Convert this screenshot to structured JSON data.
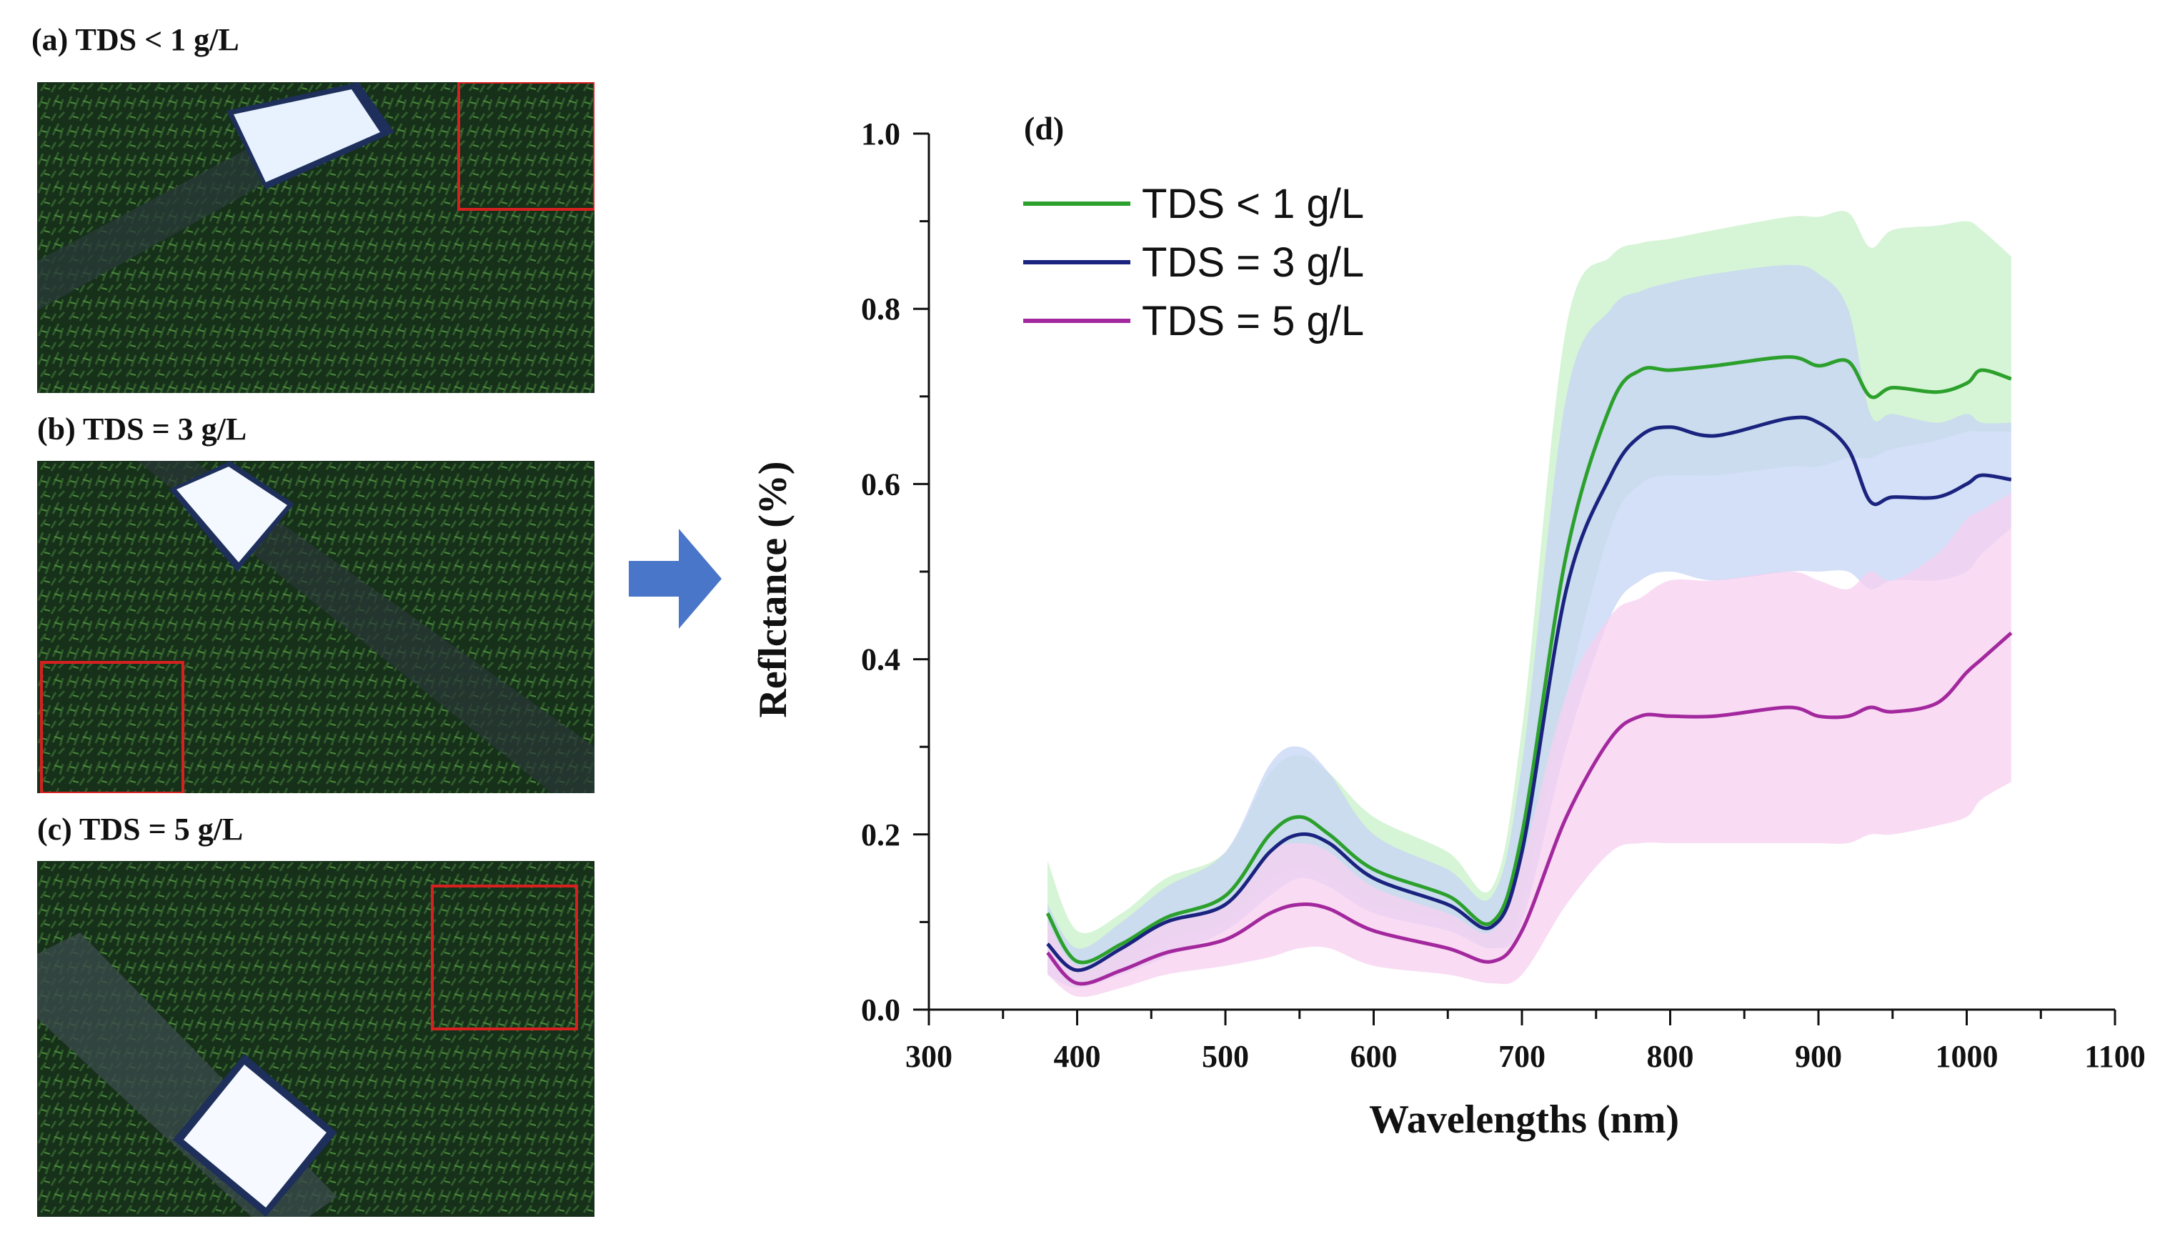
{
  "panels": [
    {
      "label": "(a) TDS < 1 g/L"
    },
    {
      "label": "(b) TDS = 3 g/L"
    },
    {
      "label": "(c) TDS = 5 g/L"
    }
  ],
  "colors": {
    "arrow": "#4a76c9",
    "roi_box": "#d92020",
    "vegetation": "#1c3a1a"
  },
  "chart_data": {
    "type": "line",
    "panel_letter": "(d)",
    "title": "",
    "xlabel": "Wavelengths (nm)",
    "ylabel": "Reflctance (%)",
    "xlim": [
      300,
      1100
    ],
    "ylim": [
      0.0,
      1.0
    ],
    "x_ticks": [
      "300",
      "400",
      "500",
      "600",
      "700",
      "800",
      "900",
      "1000",
      "1100"
    ],
    "y_ticks": [
      "0.0",
      "0.2",
      "0.4",
      "0.6",
      "0.8",
      "1.0"
    ],
    "x": [
      380,
      400,
      430,
      460,
      500,
      530,
      550,
      570,
      600,
      650,
      680,
      700,
      730,
      760,
      780,
      800,
      830,
      880,
      900,
      920,
      935,
      950,
      980,
      1000,
      1010,
      1030
    ],
    "series": [
      {
        "name": "TDS < 1 g/L",
        "color": "#2ca02c",
        "band_color": "#c8f0c8",
        "values": [
          0.11,
          0.055,
          0.075,
          0.105,
          0.13,
          0.2,
          0.22,
          0.2,
          0.16,
          0.13,
          0.1,
          0.2,
          0.52,
          0.69,
          0.73,
          0.73,
          0.735,
          0.745,
          0.735,
          0.74,
          0.7,
          0.71,
          0.705,
          0.715,
          0.73,
          0.72
        ],
        "upper": [
          0.17,
          0.09,
          0.11,
          0.15,
          0.18,
          0.27,
          0.29,
          0.27,
          0.22,
          0.18,
          0.14,
          0.32,
          0.78,
          0.86,
          0.875,
          0.88,
          0.89,
          0.905,
          0.905,
          0.91,
          0.87,
          0.89,
          0.895,
          0.9,
          0.89,
          0.86
        ],
        "lower": [
          0.07,
          0.03,
          0.05,
          0.08,
          0.1,
          0.15,
          0.16,
          0.15,
          0.12,
          0.1,
          0.07,
          0.12,
          0.36,
          0.55,
          0.6,
          0.61,
          0.61,
          0.62,
          0.62,
          0.63,
          0.63,
          0.64,
          0.65,
          0.66,
          0.66,
          0.66
        ]
      },
      {
        "name": "TDS = 3 g/L",
        "color": "#1a237e",
        "band_color": "#c5d4f5",
        "values": [
          0.075,
          0.045,
          0.07,
          0.1,
          0.12,
          0.18,
          0.2,
          0.19,
          0.15,
          0.12,
          0.095,
          0.18,
          0.48,
          0.61,
          0.655,
          0.665,
          0.655,
          0.675,
          0.67,
          0.64,
          0.58,
          0.585,
          0.585,
          0.6,
          0.61,
          0.605
        ],
        "upper": [
          0.12,
          0.07,
          0.1,
          0.14,
          0.18,
          0.28,
          0.3,
          0.27,
          0.2,
          0.16,
          0.13,
          0.28,
          0.7,
          0.8,
          0.82,
          0.83,
          0.84,
          0.85,
          0.84,
          0.8,
          0.68,
          0.68,
          0.67,
          0.68,
          0.67,
          0.67
        ],
        "lower": [
          0.04,
          0.025,
          0.04,
          0.06,
          0.09,
          0.13,
          0.15,
          0.14,
          0.11,
          0.09,
          0.07,
          0.1,
          0.3,
          0.45,
          0.49,
          0.5,
          0.49,
          0.5,
          0.5,
          0.5,
          0.48,
          0.49,
          0.49,
          0.5,
          0.52,
          0.55
        ]
      },
      {
        "name": "TDS = 5 g/L",
        "color": "#a3289e",
        "band_color": "#f7d0f0",
        "values": [
          0.065,
          0.03,
          0.045,
          0.065,
          0.08,
          0.11,
          0.12,
          0.115,
          0.09,
          0.07,
          0.055,
          0.09,
          0.22,
          0.31,
          0.335,
          0.335,
          0.335,
          0.345,
          0.335,
          0.335,
          0.345,
          0.34,
          0.35,
          0.385,
          0.4,
          0.43
        ],
        "upper": [
          0.1,
          0.05,
          0.07,
          0.1,
          0.12,
          0.18,
          0.19,
          0.18,
          0.14,
          0.11,
          0.09,
          0.17,
          0.36,
          0.45,
          0.47,
          0.49,
          0.49,
          0.5,
          0.49,
          0.48,
          0.5,
          0.49,
          0.52,
          0.56,
          0.57,
          0.59
        ],
        "lower": [
          0.04,
          0.015,
          0.025,
          0.04,
          0.05,
          0.06,
          0.07,
          0.07,
          0.05,
          0.04,
          0.03,
          0.04,
          0.12,
          0.18,
          0.19,
          0.19,
          0.19,
          0.19,
          0.19,
          0.19,
          0.2,
          0.2,
          0.21,
          0.22,
          0.24,
          0.26
        ]
      }
    ],
    "legend_position": "top-left"
  }
}
